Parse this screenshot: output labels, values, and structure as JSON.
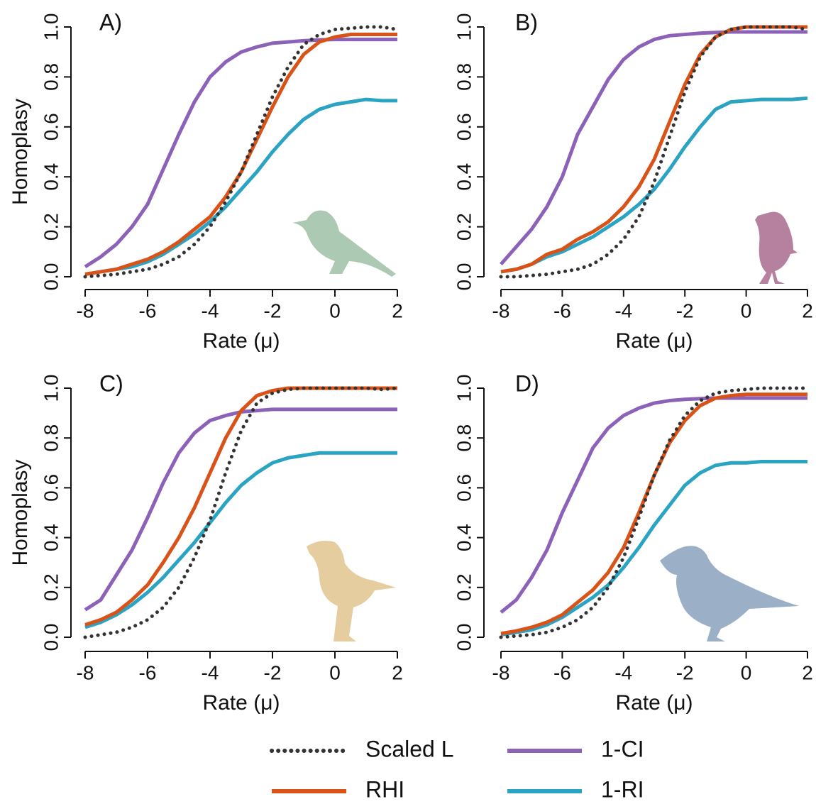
{
  "chart_data": [
    {
      "type": "line",
      "title": "A)",
      "xlabel": "Rate (μ)",
      "ylabel": "Homoplasy",
      "x": [
        -8,
        -7.5,
        -7,
        -6.5,
        -6,
        -5.5,
        -5,
        -4.5,
        -4,
        -3.5,
        -3,
        -2.5,
        -2,
        -1.5,
        -1,
        -0.5,
        0,
        0.5,
        1,
        1.5,
        2
      ],
      "xlim": [
        -8,
        2
      ],
      "xticks": [
        -8,
        -6,
        -4,
        -2,
        0,
        2
      ],
      "ylim": [
        0,
        1
      ],
      "yticks": [
        {
          "value": 0,
          "label": "0.0"
        },
        0.2,
        0.4,
        0.6,
        0.8,
        {
          "value": 1,
          "label": "1.0"
        }
      ],
      "series": [
        {
          "values": [
            0,
            0.005,
            0.01,
            0.02,
            0.03,
            0.05,
            0.08,
            0.13,
            0.2,
            0.3,
            0.42,
            0.57,
            0.72,
            0.84,
            0.93,
            0.97,
            0.99,
            0.995,
            1,
            1,
            0.99
          ]
        },
        {
          "values": [
            0.01,
            0.02,
            0.03,
            0.05,
            0.07,
            0.1,
            0.14,
            0.19,
            0.24,
            0.32,
            0.42,
            0.55,
            0.68,
            0.8,
            0.89,
            0.94,
            0.96,
            0.97,
            0.97,
            0.97,
            0.97
          ]
        },
        {
          "values": [
            0.04,
            0.08,
            0.13,
            0.2,
            0.29,
            0.43,
            0.57,
            0.7,
            0.8,
            0.86,
            0.9,
            0.92,
            0.935,
            0.94,
            0.945,
            0.948,
            0.95,
            0.95,
            0.95,
            0.95,
            0.95
          ]
        },
        {
          "values": [
            0.01,
            0.02,
            0.03,
            0.04,
            0.06,
            0.09,
            0.13,
            0.17,
            0.22,
            0.28,
            0.35,
            0.42,
            0.5,
            0.57,
            0.63,
            0.67,
            0.69,
            0.7,
            0.71,
            0.705,
            0.705
          ]
        }
      ]
    },
    {
      "type": "line",
      "title": "B)",
      "xlabel": "Rate (μ)",
      "x": [
        -8,
        -7.5,
        -7,
        -6.5,
        -6,
        -5.5,
        -5,
        -4.5,
        -4,
        -3.5,
        -3,
        -2.5,
        -2,
        -1.5,
        -1,
        -0.5,
        0,
        0.5,
        1,
        1.5,
        2
      ],
      "xlim": [
        -8,
        2
      ],
      "xticks": [
        -8,
        -6,
        -4,
        -2,
        0,
        2
      ],
      "ylim": [
        0,
        1
      ],
      "yticks": [
        {
          "value": 0,
          "label": "0.0"
        },
        0.2,
        0.4,
        0.6,
        0.8,
        {
          "value": 1,
          "label": "1.0"
        }
      ],
      "series": [
        {
          "values": [
            0,
            0,
            0.005,
            0.01,
            0.02,
            0.03,
            0.05,
            0.09,
            0.15,
            0.24,
            0.38,
            0.56,
            0.74,
            0.88,
            0.96,
            0.99,
            1,
            1,
            1,
            1,
            0.99
          ]
        },
        {
          "values": [
            0.02,
            0.03,
            0.05,
            0.09,
            0.11,
            0.15,
            0.18,
            0.22,
            0.28,
            0.36,
            0.47,
            0.62,
            0.77,
            0.89,
            0.96,
            0.99,
            1,
            1,
            1,
            1,
            1
          ]
        },
        {
          "values": [
            0.05,
            0.12,
            0.19,
            0.28,
            0.4,
            0.57,
            0.68,
            0.79,
            0.87,
            0.92,
            0.95,
            0.965,
            0.97,
            0.975,
            0.978,
            0.98,
            0.98,
            0.98,
            0.98,
            0.98,
            0.98
          ]
        },
        {
          "values": [
            0.02,
            0.03,
            0.05,
            0.08,
            0.1,
            0.13,
            0.16,
            0.2,
            0.24,
            0.29,
            0.35,
            0.43,
            0.52,
            0.6,
            0.67,
            0.7,
            0.705,
            0.71,
            0.71,
            0.71,
            0.715
          ]
        }
      ]
    },
    {
      "type": "line",
      "title": "C)",
      "xlabel": "Rate (μ)",
      "ylabel": "Homoplasy",
      "x": [
        -8,
        -7.5,
        -7,
        -6.5,
        -6,
        -5.5,
        -5,
        -4.5,
        -4,
        -3.5,
        -3,
        -2.5,
        -2,
        -1.5,
        -1,
        -0.5,
        0,
        0.5,
        1,
        1.5,
        2
      ],
      "xlim": [
        -8,
        2
      ],
      "xticks": [
        -8,
        -6,
        -4,
        -2,
        0,
        2
      ],
      "ylim": [
        0,
        1
      ],
      "yticks": [
        {
          "value": 0,
          "label": "0.0"
        },
        0.2,
        0.4,
        0.6,
        0.8,
        {
          "value": 1,
          "label": "1.0"
        }
      ],
      "series": [
        {
          "values": [
            0,
            0.01,
            0.02,
            0.04,
            0.07,
            0.12,
            0.2,
            0.32,
            0.47,
            0.66,
            0.83,
            0.94,
            0.98,
            0.995,
            1,
            1,
            1,
            1,
            1,
            0.995,
            1
          ]
        },
        {
          "values": [
            0.05,
            0.07,
            0.1,
            0.15,
            0.21,
            0.3,
            0.4,
            0.52,
            0.66,
            0.8,
            0.91,
            0.97,
            0.99,
            1,
            1,
            1,
            1,
            1,
            1,
            1,
            1
          ]
        },
        {
          "values": [
            0.11,
            0.15,
            0.25,
            0.35,
            0.48,
            0.62,
            0.74,
            0.82,
            0.87,
            0.89,
            0.905,
            0.91,
            0.915,
            0.915,
            0.915,
            0.915,
            0.915,
            0.915,
            0.915,
            0.915,
            0.915
          ]
        },
        {
          "values": [
            0.04,
            0.06,
            0.09,
            0.13,
            0.18,
            0.24,
            0.31,
            0.38,
            0.46,
            0.54,
            0.61,
            0.66,
            0.7,
            0.72,
            0.73,
            0.74,
            0.74,
            0.74,
            0.74,
            0.74,
            0.74
          ]
        }
      ]
    },
    {
      "type": "line",
      "title": "D)",
      "xlabel": "Rate (μ)",
      "x": [
        -8,
        -7.5,
        -7,
        -6.5,
        -6,
        -5.5,
        -5,
        -4.5,
        -4,
        -3.5,
        -3,
        -2.5,
        -2,
        -1.5,
        -1,
        -0.5,
        0,
        0.5,
        1,
        1.5,
        2
      ],
      "xlim": [
        -8,
        2
      ],
      "xticks": [
        -8,
        -6,
        -4,
        -2,
        0,
        2
      ],
      "ylim": [
        0,
        1
      ],
      "yticks": [
        {
          "value": 0,
          "label": "0.0"
        },
        0.2,
        0.4,
        0.6,
        0.8,
        {
          "value": 1,
          "label": "1.0"
        }
      ],
      "series": [
        {
          "values": [
            0,
            0.005,
            0.01,
            0.02,
            0.04,
            0.07,
            0.12,
            0.2,
            0.32,
            0.48,
            0.65,
            0.79,
            0.89,
            0.95,
            0.98,
            0.99,
            0.995,
            1,
            1,
            1,
            1
          ]
        },
        {
          "values": [
            0.015,
            0.025,
            0.04,
            0.06,
            0.09,
            0.14,
            0.19,
            0.26,
            0.36,
            0.5,
            0.65,
            0.78,
            0.87,
            0.93,
            0.96,
            0.97,
            0.975,
            0.975,
            0.975,
            0.975,
            0.975
          ]
        },
        {
          "values": [
            0.1,
            0.15,
            0.24,
            0.35,
            0.5,
            0.63,
            0.76,
            0.84,
            0.89,
            0.92,
            0.94,
            0.95,
            0.955,
            0.958,
            0.96,
            0.96,
            0.96,
            0.96,
            0.96,
            0.96,
            0.96
          ]
        },
        {
          "values": [
            0.01,
            0.02,
            0.03,
            0.05,
            0.08,
            0.12,
            0.16,
            0.21,
            0.28,
            0.36,
            0.45,
            0.53,
            0.61,
            0.66,
            0.69,
            0.7,
            0.7,
            0.705,
            0.705,
            0.705,
            0.705
          ]
        }
      ]
    }
  ],
  "legend": {
    "series": [
      {
        "name": "Scaled L",
        "color": "#333333",
        "dash": "dotted"
      },
      {
        "name": "RHI",
        "color": "#d95319"
      },
      {
        "name": "1-CI",
        "color": "#8c62b8"
      },
      {
        "name": "1-RI",
        "color": "#2ba3c2"
      }
    ]
  }
}
